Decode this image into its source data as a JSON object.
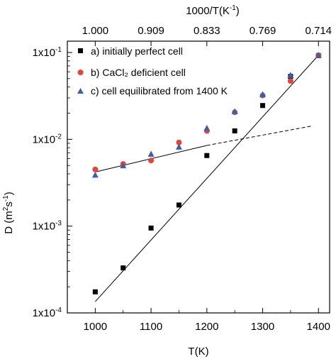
{
  "chart_data": {
    "type": "scatter",
    "y_scale": "log",
    "ylim": [
      0.0001,
      0.1
    ],
    "xlim": [
      950,
      1420
    ],
    "xlabel": "T(K)",
    "ylabel_base": "D (m",
    "ylabel_sup1": "2",
    "ylabel_mid": "s",
    "ylabel_sup2": "-1",
    "ylabel_end": ")",
    "top_axis_label_base": "1000/T(K",
    "top_axis_label_sup": "-1",
    "top_axis_label_end": ")",
    "x_ticks": [
      {
        "value": 1000,
        "label": "1000"
      },
      {
        "value": 1100,
        "label": "1100"
      },
      {
        "value": 1200,
        "label": "1200"
      },
      {
        "value": 1300,
        "label": "1300"
      },
      {
        "value": 1400,
        "label": "1400"
      }
    ],
    "top_ticks": [
      {
        "value": 1000,
        "label": "1.000"
      },
      {
        "value": 1100,
        "label": "0.909"
      },
      {
        "value": 1200,
        "label": "0.833"
      },
      {
        "value": 1300,
        "label": "0.769"
      },
      {
        "value": 1400,
        "label": "0.714"
      }
    ],
    "y_ticks": [
      {
        "value": 0.0001,
        "base": "1x10",
        "exp": "-4"
      },
      {
        "value": 0.001,
        "base": "1x10",
        "exp": "-3"
      },
      {
        "value": 0.01,
        "base": "1x10",
        "exp": "-2"
      },
      {
        "value": 0.1,
        "base": "1x10",
        "exp": "-1"
      }
    ],
    "series": [
      {
        "name": "a) initially perfect cell",
        "marker": "square",
        "color": "#000000",
        "x": [
          1000,
          1050,
          1100,
          1150,
          1200,
          1250,
          1300,
          1350,
          1400
        ],
        "y": [
          0.000175,
          0.00033,
          0.00095,
          0.00175,
          0.0065,
          0.0125,
          0.0245,
          0.053,
          0.092
        ]
      },
      {
        "name": "b) CaCl₂ deficient cell",
        "marker": "circle",
        "color": "#e8423b",
        "x": [
          1000,
          1050,
          1100,
          1150,
          1200,
          1250,
          1300,
          1350,
          1400
        ],
        "y": [
          0.0045,
          0.0052,
          0.0057,
          0.0092,
          0.0125,
          0.0205,
          0.032,
          0.047,
          0.093
        ]
      },
      {
        "name": "c) cell equilibrated from 1400 K",
        "marker": "triangle",
        "color": "#3f5ea8",
        "x": [
          1000,
          1050,
          1100,
          1150,
          1200,
          1250,
          1300,
          1350,
          1400
        ],
        "y": [
          0.0039,
          0.005,
          0.0068,
          0.0082,
          0.0135,
          0.021,
          0.033,
          0.055,
          0.093
        ]
      }
    ],
    "fit_lines": [
      {
        "style": "solid",
        "x": [
          1000,
          1400
        ],
        "y": [
          0.000135,
          0.093
        ]
      },
      {
        "style": "solid",
        "x": [
          1000,
          1200
        ],
        "y": [
          0.0042,
          0.0085
        ]
      },
      {
        "style": "dashed",
        "x": [
          1200,
          1390
        ],
        "y": [
          0.0085,
          0.0143
        ]
      }
    ],
    "legend_position": "top-left",
    "grid": false
  }
}
